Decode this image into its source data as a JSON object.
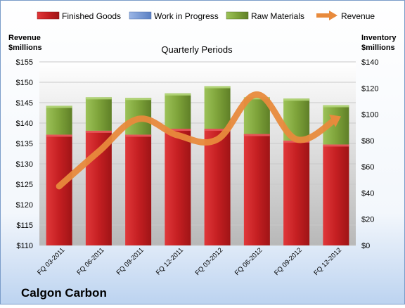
{
  "company": "Calgon Carbon",
  "chart_data": {
    "type": "bar",
    "title": "Quarterly Periods",
    "left_axis_label_line1": "Revenue",
    "left_axis_label_line2": "$millions",
    "right_axis_label_line1": "Inventory",
    "right_axis_label_line2": "$millions",
    "categories": [
      "FQ 03-2011",
      "FQ 06-2011",
      "FQ 09-2011",
      "FQ 12-2011",
      "FQ 03-2012",
      "FQ 06-2012",
      "FQ 09-2012",
      "FQ 12-2012"
    ],
    "left_ylim": [
      110,
      155
    ],
    "left_ticks": [
      "$110",
      "$115",
      "$120",
      "$125",
      "$130",
      "$135",
      "$140",
      "$145",
      "$150",
      "$155"
    ],
    "right_ylim": [
      0,
      140
    ],
    "right_ticks": [
      "$0",
      "$20",
      "$40",
      "$60",
      "$80",
      "$100",
      "$120",
      "$140"
    ],
    "stacked": true,
    "series": [
      {
        "name": "Finished Goods",
        "axis": "right",
        "color": "#c0191c",
        "values": [
          84.5,
          87.5,
          84.5,
          89,
          89,
          85,
          80,
          77
        ]
      },
      {
        "name": "Work in Progress",
        "axis": "right",
        "color": "#6a8fd0",
        "values": [
          0,
          0,
          0,
          0,
          0,
          0,
          0,
          0
        ]
      },
      {
        "name": "Raw Materials",
        "axis": "right",
        "color": "#7ea33a",
        "values": [
          22,
          25.5,
          28,
          27,
          32.5,
          28,
          32,
          30
        ]
      },
      {
        "name": "Revenue",
        "axis": "left",
        "type": "line",
        "color": "#e88a3c",
        "values": [
          124.5,
          133,
          141,
          137,
          136,
          147,
          136,
          141
        ]
      }
    ],
    "legend_position": "top",
    "grid": true
  }
}
